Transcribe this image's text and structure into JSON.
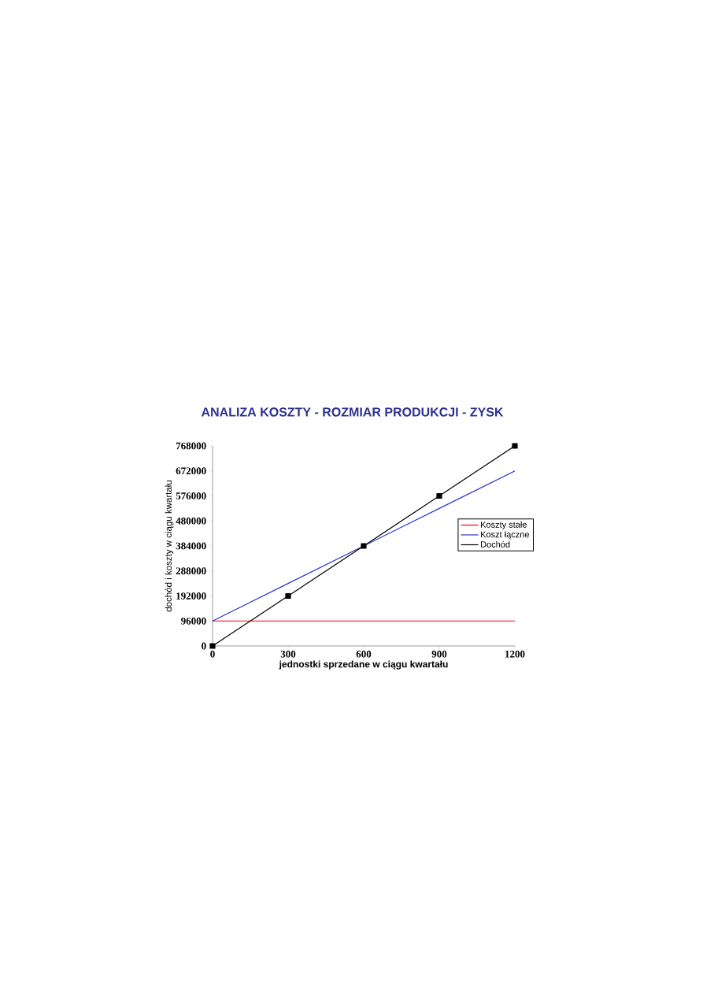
{
  "chart_data": {
    "type": "line",
    "title": "ANALIZA KOSZTY - ROZMIAR PRODUKCJI - ZYSK",
    "xlabel": "jednostki sprzedane w ciągu kwartału",
    "ylabel": "dochód i koszty w ciągu kwartału",
    "x": [
      0,
      300,
      600,
      900,
      1200
    ],
    "series": [
      {
        "name": "Koszty stałe",
        "color": "#ff0000",
        "values": [
          96000,
          96000,
          96000,
          96000,
          96000
        ]
      },
      {
        "name": "Koszt łączne",
        "color": "#3333cc",
        "values": [
          96000,
          240000,
          384000,
          528000,
          672000
        ]
      },
      {
        "name": "Dochód",
        "color": "#000000",
        "marker": "square",
        "values": [
          0,
          192000,
          384000,
          576000,
          768000
        ]
      }
    ],
    "xlim": [
      0,
      1200
    ],
    "ylim": [
      0,
      768000
    ],
    "xticks": [
      0,
      300,
      600,
      900,
      1200
    ],
    "yticks": [
      0,
      96000,
      192000,
      288000,
      384000,
      480000,
      576000,
      672000,
      768000
    ],
    "grid": false,
    "legend": "right"
  }
}
